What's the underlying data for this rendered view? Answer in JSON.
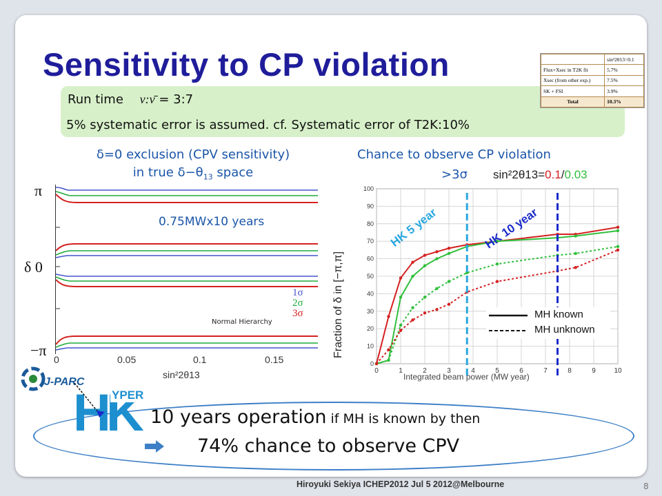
{
  "slide": {
    "title": "Sensitivity to CP violation",
    "run_time_label": "Run time",
    "run_time_ratio_symbol": "ν:ν̄",
    "run_time_ratio": "= 3:7",
    "systematic_note": "5% systematic error is assumed. cf. Systematic error of T2K:10%"
  },
  "syst_table": {
    "header": "sin²2θ13=0.1",
    "rows": [
      {
        "label": "Flux+Xsec in T2K fit",
        "value": "5.7%"
      },
      {
        "label": "Xsec (from other exp.)",
        "value": "7.5%"
      },
      {
        "label": "SK + FSI",
        "value": "3.9%"
      },
      {
        "label": "Total",
        "value": "10.3%"
      }
    ]
  },
  "left_chart": {
    "title_line1": "δ=0 exclusion (CPV sensitivity)",
    "title_line2_a": "in true δ−θ",
    "title_line2_sub": "13",
    "title_line2_b": " space",
    "annotation": "0.75MWx10 years",
    "y_tick_top": "π",
    "y_tick_mid": "δ  0",
    "y_tick_bottom": "−π",
    "x_ticks": [
      "0",
      "0.05",
      "0.1",
      "0.15"
    ],
    "x_label": "sin²2θ13",
    "legend": [
      {
        "label": "1σ",
        "color": "#4455cc"
      },
      {
        "label": "2σ",
        "color": "#1faa3a"
      },
      {
        "label": "3σ",
        "color": "#d42020"
      }
    ],
    "hierarchy_label": "Normal Hierarchy"
  },
  "right_chart": {
    "title_line1": "Chance to observe CP violation",
    "title_line2": ">3σ",
    "theta_label": "sin²2θ13=",
    "theta_value_1": "0.1",
    "theta_sep": "/",
    "theta_value_2": "0.03",
    "y_label": "Fraction of δ in [−π,π]",
    "x_label": "Integrated beam power (MW year)",
    "hk5_label": "HK 5 year",
    "hk10_label": "HK 10 year",
    "legend_known": "MH known",
    "legend_unknown": "MH unknown"
  },
  "chart_data": {
    "type": "line",
    "x": [
      0,
      0.5,
      1,
      1.5,
      2,
      2.5,
      3,
      3.75,
      5,
      7.5,
      8.25,
      10
    ],
    "xlim": [
      0,
      10
    ],
    "ylim": [
      0,
      100
    ],
    "x_ticks": [
      0,
      1,
      2,
      3,
      4,
      5,
      6,
      7,
      8,
      9,
      10
    ],
    "y_ticks": [
      0,
      10,
      20,
      30,
      40,
      50,
      60,
      70,
      80,
      90,
      100
    ],
    "xlabel": "Integrated beam power (MW year)",
    "ylabel": "Fraction of δ in [−π,π]",
    "grid": true,
    "markers": {
      "hk5_x": 3.75,
      "hk10_x": 7.5
    },
    "series": [
      {
        "color": "#d42020",
        "style": "solid",
        "values": [
          0,
          27,
          49,
          58,
          62,
          64,
          66,
          68,
          70,
          74,
          74,
          78
        ]
      },
      {
        "color": "#2fbf3a",
        "style": "solid",
        "values": [
          0,
          2,
          38,
          50,
          56,
          60,
          63,
          67,
          70,
          72,
          73,
          76
        ]
      },
      {
        "color": "#2fbf3a",
        "style": "dotted",
        "values": [
          0,
          2,
          22,
          32,
          38,
          43,
          47,
          52,
          57,
          62,
          63,
          67
        ]
      },
      {
        "color": "#d42020",
        "style": "dotted",
        "values": [
          0,
          8,
          19,
          25,
          29,
          31,
          34,
          41,
          47,
          53,
          55,
          65
        ]
      }
    ]
  },
  "bottom": {
    "line1_big": "10 years operation",
    "line1_small": " if MH is known by then",
    "line2": "74% chance to observe CPV",
    "logo_jparc": "J-PARC",
    "logo_hk_h": "H",
    "logo_hk_k": "K",
    "logo_hk_yper": "YPER"
  },
  "footer": {
    "text": "Hiroyuki Sekiya  ICHEP2012 Jul  5 2012@Melbourne",
    "page": "8"
  }
}
